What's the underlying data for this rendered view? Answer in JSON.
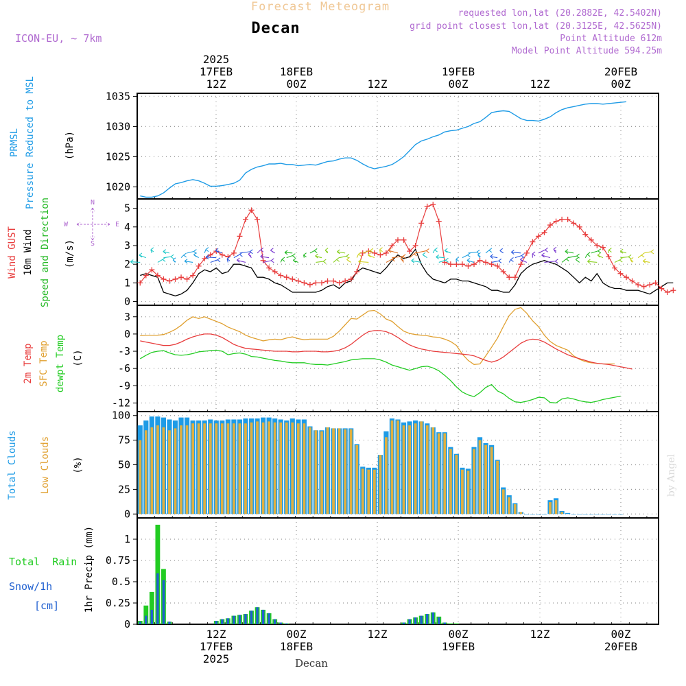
{
  "header": {
    "title": "Forecast Meteogram",
    "location": "Decan",
    "model": "ICON-EU, ~ 7km",
    "requested": "requested lon,lat (20.2882E, 42.5402N)",
    "gridpoint": "grid point closest lon,lat (20.3125E, 42.5625N)",
    "altitude": "Point Altitude 612m",
    "model_altitude": "Model Point Altitude 594.25m"
  },
  "time_axis": {
    "top_labels": [
      {
        "line1": "2025",
        "line2": "17FEB",
        "line3": "12Z"
      },
      {
        "line1": "",
        "line2": "18FEB",
        "line3": "00Z"
      },
      {
        "line1": "",
        "line2": "",
        "line3": "12Z"
      },
      {
        "line1": "",
        "line2": "19FEB",
        "line3": "00Z"
      },
      {
        "line1": "",
        "line2": "",
        "line3": "12Z"
      },
      {
        "line1": "",
        "line2": "20FEB",
        "line3": "00Z"
      }
    ],
    "bottom_labels": [
      {
        "line1": "12Z",
        "line2": "17FEB",
        "line3": "2025"
      },
      {
        "line1": "00Z",
        "line2": "18FEB",
        "line3": ""
      },
      {
        "line1": "12Z",
        "line2": "",
        "line3": ""
      },
      {
        "line1": "00Z",
        "line2": "19FEB",
        "line3": ""
      },
      {
        "line1": "12Z",
        "line2": "",
        "line3": ""
      },
      {
        "line1": "00Z",
        "line2": "20FEB",
        "line3": ""
      }
    ],
    "hours_per_step": 1,
    "footer": "Decan"
  },
  "panels": {
    "pressure": {
      "label1": "PRMSL",
      "label2": "Pressure Reduced to MSL",
      "unit": "(hPa)",
      "color": "#1e9be6"
    },
    "wind": {
      "label_gust": "Wind GUST",
      "label_wind": "10m Wind",
      "label_dir": "Speed and Direction",
      "unit": "(m/s)",
      "compass_w": "W",
      "compass_e": "E",
      "compass_n": "N",
      "compass_s": "S",
      "gust_color": "#e83c3c",
      "wind_color": "#000000",
      "dir_color": "#22b822"
    },
    "temp": {
      "label_2m": "2m Temp",
      "label_sfc": "SFC Temp",
      "label_dew": "dewpt Temp",
      "unit": "(C)",
      "color_2m": "#e83c3c",
      "color_sfc": "#e0a030",
      "color_dew": "#22cc22"
    },
    "clouds": {
      "label_total": "Total Clouds",
      "label_low": "Low Clouds",
      "unit": "(%)",
      "color_total": "#1e9be6",
      "color_low": "#e0b040"
    },
    "precip": {
      "label_rain": "Total  Rain",
      "label_snow": "Snow/1h",
      "label_snow_unit": "[cm]",
      "unit": "1hr Precip (mm)",
      "color_rain": "#22cc22",
      "color_snow": "#2060d0"
    }
  },
  "watermark": "by Angel",
  "chart_data": [
    {
      "type": "line",
      "title": "PRMSL Pressure Reduced to MSL",
      "ylabel": "hPa",
      "ylim": [
        1018,
        1035.5
      ],
      "yticks": [
        1020,
        1025,
        1030,
        1035
      ],
      "x_start_hour": 0,
      "series": [
        {
          "name": "PRMSL",
          "values": [
            1018.5,
            1018.3,
            1018.3,
            1018.5,
            1019,
            1019.8,
            1020.5,
            1020.7,
            1021,
            1021.2,
            1021,
            1020.6,
            1020.1,
            1020.1,
            1020.2,
            1020.4,
            1020.6,
            1021.1,
            1022.3,
            1022.9,
            1023.3,
            1023.5,
            1023.8,
            1023.8,
            1023.9,
            1023.7,
            1023.7,
            1023.5,
            1023.6,
            1023.7,
            1023.6,
            1023.9,
            1024.2,
            1024.3,
            1024.6,
            1024.8,
            1024.8,
            1024.4,
            1023.8,
            1023.3,
            1023,
            1023.2,
            1023.4,
            1023.7,
            1024.3,
            1025,
            1026,
            1027,
            1027.6,
            1027.9,
            1028.3,
            1028.6,
            1029.1,
            1029.3,
            1029.4,
            1029.7,
            1030,
            1030.5,
            1030.8,
            1031.5,
            1032.3,
            1032.5,
            1032.6,
            1032.5,
            1031.9,
            1031.3,
            1031.0,
            1031.0,
            1030.9,
            1031.2,
            1031.6,
            1032.3,
            1032.8,
            1033.1,
            1033.3,
            1033.5,
            1033.7,
            1033.8,
            1033.8,
            1033.7,
            1033.8,
            1033.9,
            1034.0,
            1034.1
          ]
        }
      ]
    },
    {
      "type": "line",
      "title": "Wind GUST / 10m Wind",
      "ylabel": "m/s",
      "ylim": [
        -0.2,
        5.5
      ],
      "yticks": [
        0,
        1,
        2,
        3,
        4,
        5
      ],
      "series": [
        {
          "name": "Wind GUST",
          "values": [
            1.0,
            1.4,
            1.7,
            1.4,
            1.2,
            1.1,
            1.2,
            1.3,
            1.2,
            1.4,
            1.9,
            2.3,
            2.5,
            2.7,
            2.5,
            2.4,
            2.6,
            3.5,
            4.4,
            4.9,
            4.4,
            2.2,
            1.8,
            1.6,
            1.4,
            1.3,
            1.2,
            1.1,
            1.0,
            0.9,
            1.0,
            1.0,
            1.1,
            1.1,
            1.0,
            1.1,
            1.2,
            1.6,
            2.6,
            2.7,
            2.6,
            2.5,
            2.6,
            3.0,
            3.3,
            3.3,
            2.7,
            3.0,
            4.2,
            5.1,
            5.2,
            4.3,
            2.1,
            2.0,
            2.0,
            2.0,
            1.9,
            2.0,
            2.2,
            2.1,
            2.0,
            1.9,
            1.6,
            1.3,
            1.3,
            2.0,
            2.6,
            3.2,
            3.5,
            3.7,
            4.1,
            4.3,
            4.4,
            4.4,
            4.2,
            4.0,
            3.6,
            3.3,
            3.0,
            2.9,
            2.4,
            1.8,
            1.5,
            1.3,
            1.1,
            0.9,
            0.8,
            0.9,
            1.0,
            0.7,
            0.5,
            0.6
          ]
        },
        {
          "name": "10m Wind",
          "values": [
            1.4,
            1.5,
            1.4,
            1.3,
            0.5,
            0.4,
            0.3,
            0.4,
            0.6,
            1.0,
            1.5,
            1.7,
            1.6,
            1.8,
            1.5,
            1.6,
            2.0,
            2.0,
            1.9,
            1.8,
            1.3,
            1.3,
            1.2,
            1.0,
            0.9,
            0.7,
            0.5,
            0.5,
            0.5,
            0.5,
            0.5,
            0.6,
            0.8,
            0.9,
            0.7,
            1.0,
            1.1,
            1.6,
            1.8,
            1.7,
            1.6,
            1.5,
            1.8,
            2.2,
            2.5,
            2.3,
            2.4,
            2.8,
            2.0,
            1.5,
            1.2,
            1.1,
            1.0,
            1.2,
            1.2,
            1.1,
            1.1,
            1.0,
            0.9,
            0.8,
            0.6,
            0.6,
            0.5,
            0.5,
            0.9,
            1.5,
            1.8,
            2.0,
            2.1,
            2.2,
            2.1,
            2.0,
            1.8,
            1.6,
            1.3,
            1.0,
            1.3,
            1.1,
            1.5,
            1.0,
            0.8,
            0.7,
            0.7,
            0.6,
            0.6,
            0.6,
            0.5,
            0.4,
            0.6,
            0.8,
            1.0,
            1.0
          ]
        },
        {
          "name": "Direction arrows",
          "values": []
        }
      ]
    },
    {
      "type": "line",
      "title": "2m Temp / SFC Temp / dewpt Temp",
      "ylabel": "C",
      "ylim": [
        -13.5,
        5
      ],
      "yticks": [
        -12,
        -9,
        -6,
        -3,
        0,
        3
      ],
      "series": [
        {
          "name": "2m Temp",
          "values": [
            -1.2,
            -1.4,
            -1.6,
            -1.8,
            -2.0,
            -2.0,
            -1.8,
            -1.4,
            -0.9,
            -0.5,
            -0.2,
            0.0,
            0.0,
            -0.2,
            -0.6,
            -1.2,
            -1.8,
            -2.2,
            -2.5,
            -2.6,
            -2.7,
            -2.8,
            -2.9,
            -3.0,
            -3.0,
            -3.0,
            -3.1,
            -3.1,
            -3.0,
            -3.0,
            -3.0,
            -3.1,
            -3.1,
            -3.0,
            -2.8,
            -2.4,
            -1.8,
            -1.0,
            -0.2,
            0.4,
            0.6,
            0.6,
            0.4,
            0.0,
            -0.6,
            -1.3,
            -1.9,
            -2.3,
            -2.6,
            -2.8,
            -3.0,
            -3.1,
            -3.2,
            -3.3,
            -3.4,
            -3.5,
            -3.6,
            -3.8,
            -4.2,
            -4.6,
            -4.9,
            -4.6,
            -4.0,
            -3.2,
            -2.4,
            -1.6,
            -1.1,
            -0.9,
            -1.0,
            -1.4,
            -2.0,
            -2.6,
            -3.1,
            -3.6,
            -4.0,
            -4.3,
            -4.6,
            -4.9,
            -5.1,
            -5.2,
            -5.3,
            -5.5,
            -5.7,
            -5.9,
            -6.1
          ]
        },
        {
          "name": "SFC Temp",
          "values": [
            -0.3,
            -0.2,
            -0.2,
            -0.2,
            -0.1,
            0.3,
            0.8,
            1.5,
            2.4,
            3.0,
            2.7,
            3.0,
            2.6,
            2.2,
            1.8,
            1.2,
            0.8,
            0.4,
            -0.2,
            -0.6,
            -0.9,
            -1.2,
            -1.0,
            -0.9,
            -1.0,
            -0.7,
            -0.5,
            -0.8,
            -1.0,
            -0.9,
            -0.9,
            -0.9,
            -0.9,
            -0.4,
            0.5,
            1.6,
            2.7,
            2.6,
            3.3,
            4.0,
            4.1,
            3.5,
            2.6,
            2.2,
            1.3,
            0.5,
            0.1,
            -0.1,
            -0.2,
            -0.3,
            -0.5,
            -0.6,
            -0.9,
            -1.3,
            -2.0,
            -3.5,
            -4.6,
            -5.3,
            -5.2,
            -3.8,
            -2.3,
            -0.7,
            1.3,
            3.2,
            4.3,
            4.6,
            3.6,
            2.3,
            1.3,
            -0.2,
            -1.3,
            -2.0,
            -2.4,
            -2.8,
            -3.8,
            -4.4,
            -4.8,
            -5.0,
            -5.1,
            -5.2,
            -5.2,
            -5.2
          ]
        },
        {
          "name": "dewpt Temp",
          "values": [
            -4.3,
            -3.7,
            -3.2,
            -3.0,
            -2.9,
            -3.3,
            -3.6,
            -3.7,
            -3.6,
            -3.4,
            -3.1,
            -3.0,
            -2.9,
            -2.8,
            -3.0,
            -3.6,
            -3.4,
            -3.3,
            -3.5,
            -3.9,
            -4.0,
            -4.2,
            -4.4,
            -4.6,
            -4.7,
            -4.9,
            -5.0,
            -5.0,
            -5.0,
            -5.2,
            -5.3,
            -5.3,
            -5.4,
            -5.2,
            -5.0,
            -4.8,
            -4.5,
            -4.4,
            -4.3,
            -4.3,
            -4.3,
            -4.5,
            -4.9,
            -5.4,
            -5.7,
            -6.0,
            -6.3,
            -6.0,
            -5.7,
            -5.6,
            -5.9,
            -6.4,
            -7.2,
            -8.1,
            -9.2,
            -10.1,
            -10.6,
            -10.9,
            -10.2,
            -9.3,
            -8.8,
            -9.9,
            -10.4,
            -11.2,
            -11.8,
            -11.9,
            -11.7,
            -11.4,
            -11.0,
            -11.1,
            -11.9,
            -12.0,
            -11.3,
            -11.1,
            -11.3,
            -11.6,
            -11.8,
            -11.9,
            -11.7,
            -11.4,
            -11.2,
            -11.0,
            -10.8
          ]
        }
      ]
    },
    {
      "type": "bar",
      "title": "Total Clouds / Low Clouds",
      "ylabel": "%",
      "ylim": [
        -4,
        104
      ],
      "yticks": [
        0,
        25,
        50,
        75,
        100
      ],
      "series": [
        {
          "name": "Total Clouds",
          "values": [
            90,
            95,
            99,
            99,
            98,
            96,
            95,
            98,
            98,
            95,
            95,
            95,
            96,
            95,
            95,
            96,
            96,
            96,
            97,
            97,
            97,
            98,
            98,
            97,
            96,
            95,
            97,
            96,
            96,
            89,
            85,
            85,
            88,
            87,
            87,
            87,
            87,
            71,
            48,
            47,
            47,
            60,
            84,
            97,
            96,
            93,
            94,
            95,
            94,
            92,
            88,
            83,
            83,
            68,
            61,
            47,
            46,
            68,
            78,
            72,
            70,
            55,
            27,
            19,
            11,
            2,
            0,
            0,
            0,
            0,
            14,
            16,
            3,
            1,
            0,
            0,
            0,
            0,
            0,
            0,
            0,
            0,
            0
          ]
        },
        {
          "name": "Low Clouds",
          "values": [
            75,
            85,
            88,
            90,
            88,
            85,
            87,
            90,
            90,
            92,
            92,
            92,
            92,
            92,
            92,
            92,
            92,
            92,
            92,
            93,
            94,
            93,
            94,
            93,
            93,
            93,
            93,
            92,
            92,
            88,
            85,
            84,
            88,
            87,
            87,
            86,
            86,
            70,
            46,
            45,
            45,
            60,
            78,
            95,
            95,
            90,
            90,
            92,
            94,
            90,
            88,
            82,
            82,
            66,
            60,
            45,
            44,
            66,
            75,
            70,
            68,
            54,
            25,
            17,
            10,
            2,
            0,
            0,
            0,
            0,
            12,
            14,
            2,
            0,
            0,
            0,
            0,
            0,
            0,
            0,
            0,
            0,
            0
          ]
        }
      ]
    },
    {
      "type": "bar",
      "title": "1hr Precip (mm)",
      "ylabel": "1hr Precip (mm)",
      "ylim": [
        0,
        1.25
      ],
      "yticks": [
        0,
        0.25,
        0.5,
        0.75,
        1
      ],
      "series": [
        {
          "name": "Total Rain",
          "values": [
            0.04,
            0.22,
            0.38,
            1.17,
            0.65,
            0.03,
            0,
            0,
            0,
            0,
            0,
            0,
            0,
            0.04,
            0.06,
            0.07,
            0.1,
            0.11,
            0.12,
            0.16,
            0.2,
            0.17,
            0.13,
            0.06,
            0.02,
            0.01,
            0,
            0,
            0,
            0,
            0,
            0,
            0,
            0,
            0,
            0,
            0,
            0,
            0,
            0,
            0,
            0,
            0,
            0,
            0,
            0.02,
            0.06,
            0.08,
            0.1,
            0.12,
            0.14,
            0.09,
            0.02,
            0.01,
            0.01,
            0,
            0,
            0,
            0,
            0,
            0,
            0,
            0,
            0,
            0,
            0,
            0,
            0,
            0,
            0,
            0,
            0,
            0,
            0,
            0,
            0,
            0,
            0,
            0,
            0,
            0,
            0,
            0
          ]
        },
        {
          "name": "Snow/1h",
          "values": [
            0.03,
            0.1,
            0.17,
            0.6,
            0.52,
            0.03,
            0,
            0,
            0,
            0,
            0,
            0,
            0,
            0.04,
            0.06,
            0.07,
            0.1,
            0.11,
            0.12,
            0.16,
            0.2,
            0.17,
            0.13,
            0.06,
            0.02,
            0.01,
            0,
            0,
            0,
            0,
            0,
            0,
            0,
            0,
            0,
            0,
            0,
            0,
            0,
            0,
            0,
            0,
            0,
            0,
            0,
            0.02,
            0.06,
            0.08,
            0.1,
            0.12,
            0.14,
            0.08,
            0.02,
            0,
            0,
            0,
            0,
            0,
            0,
            0,
            0,
            0,
            0,
            0,
            0,
            0,
            0,
            0,
            0,
            0,
            0,
            0,
            0,
            0,
            0,
            0,
            0,
            0,
            0,
            0,
            0,
            0,
            0
          ]
        }
      ]
    }
  ]
}
